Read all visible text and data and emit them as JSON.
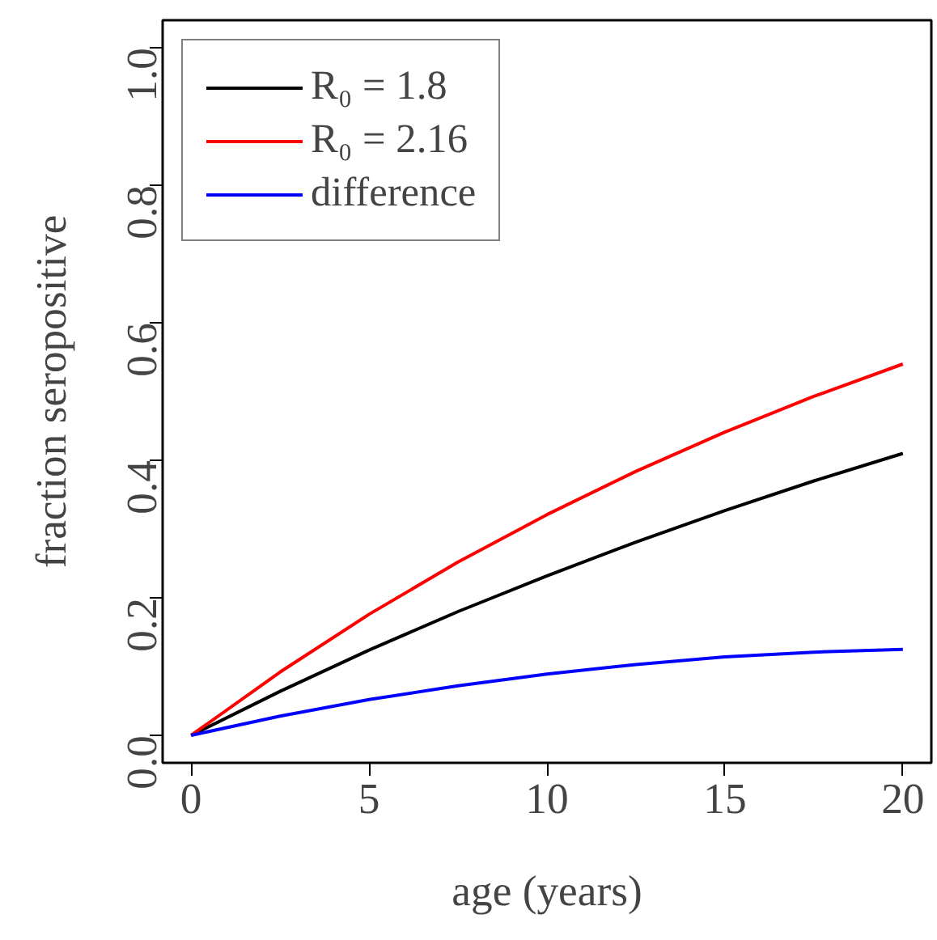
{
  "chart_data": {
    "type": "line",
    "xlabel": "age (years)",
    "ylabel": "fraction seropositive",
    "x": [
      0,
      2.5,
      5,
      7.5,
      10,
      12.5,
      15,
      17.5,
      20
    ],
    "series": [
      {
        "name": "R₀ = 1.8",
        "color": "#000000",
        "values": [
          0,
          0.064,
          0.124,
          0.18,
          0.232,
          0.281,
          0.327,
          0.37,
          0.41
        ]
      },
      {
        "name": "R₀ = 2.16",
        "color": "#ff0000",
        "values": [
          0,
          0.092,
          0.176,
          0.252,
          0.321,
          0.384,
          0.441,
          0.493,
          0.54
        ]
      },
      {
        "name": "difference",
        "color": "#0000ff",
        "values": [
          0,
          0.028,
          0.052,
          0.072,
          0.089,
          0.103,
          0.114,
          0.121,
          0.125
        ]
      }
    ],
    "xlim": [
      -0.8,
      20.8
    ],
    "ylim": [
      -0.04,
      1.04
    ],
    "xticks": [
      0,
      5,
      10,
      15,
      20
    ],
    "yticks": [
      {
        "value": 0,
        "label": "0.0"
      },
      {
        "value": 0.2,
        "label": "0.2"
      },
      {
        "value": 0.4,
        "label": "0.4"
      },
      {
        "value": 0.6,
        "label": "0.6"
      },
      {
        "value": 0.8,
        "label": "0.8"
      },
      {
        "value": 1,
        "label": "1.0"
      }
    ],
    "grid": false,
    "legend": "top left",
    "line_style": "solid",
    "marker": "none"
  }
}
